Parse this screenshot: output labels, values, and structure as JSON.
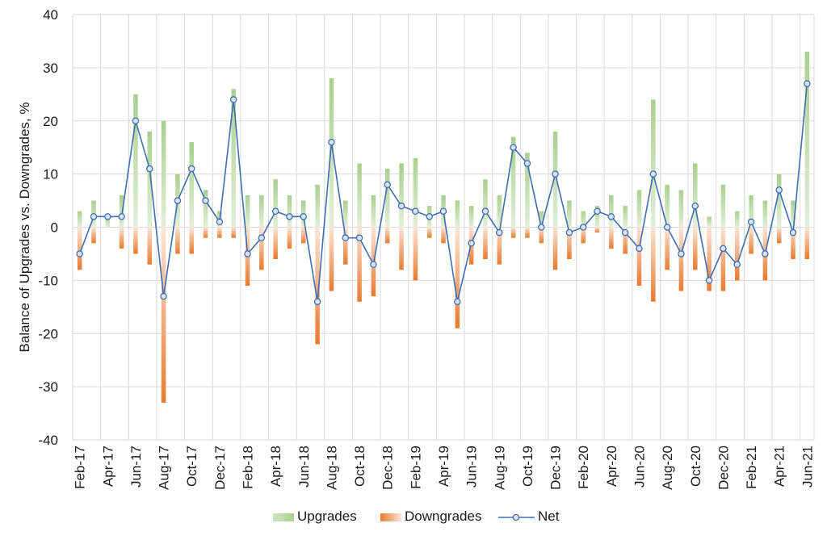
{
  "chart_data": {
    "type": "bar",
    "ylabel": "Balance of Upgrades vs. Downgrades, %",
    "ylim": [
      -40,
      40
    ],
    "yticks": [
      "-40",
      "-30",
      "-20",
      "-10",
      "0",
      "10",
      "20",
      "30",
      "40"
    ],
    "grid": "vertical and horizontal",
    "legend_position": "bottom",
    "x_tick_labels": [
      "Feb-17",
      "Apr-17",
      "Jun-17",
      "Aug-17",
      "Oct-17",
      "Dec-17",
      "Feb-18",
      "Apr-18",
      "Jun-18",
      "Aug-18",
      "Oct-18",
      "Dec-18",
      "Feb-19",
      "Apr-19",
      "Jun-19",
      "Aug-19",
      "Oct-19",
      "Dec-19",
      "Feb-20",
      "Apr-20",
      "Jun-20",
      "Aug-20",
      "Oct-20",
      "Dec-20",
      "Feb-21",
      "Apr-21",
      "Jun-21"
    ],
    "categories": [
      "Feb-17",
      "Mar-17",
      "Apr-17",
      "May-17",
      "Jun-17",
      "Jul-17",
      "Aug-17",
      "Sep-17",
      "Oct-17",
      "Nov-17",
      "Dec-17",
      "Jan-18",
      "Feb-18",
      "Mar-18",
      "Apr-18",
      "May-18",
      "Jun-18",
      "Jul-18",
      "Aug-18",
      "Sep-18",
      "Oct-18",
      "Nov-18",
      "Dec-18",
      "Jan-19",
      "Feb-19",
      "Mar-19",
      "Apr-19",
      "May-19",
      "Jun-19",
      "Jul-19",
      "Aug-19",
      "Sep-19",
      "Oct-19",
      "Nov-19",
      "Dec-19",
      "Jan-20",
      "Feb-20",
      "Mar-20",
      "Apr-20",
      "May-20",
      "Jun-20",
      "Jul-20",
      "Aug-20",
      "Sep-20",
      "Oct-20",
      "Nov-20",
      "Dec-20",
      "Jan-21",
      "Feb-21",
      "Mar-21",
      "Apr-21",
      "May-21",
      "Jun-21"
    ],
    "series": [
      {
        "name": "Upgrades",
        "kind": "bar",
        "color": "#a9d08e",
        "values": [
          3,
          5,
          2,
          6,
          25,
          18,
          20,
          10,
          16,
          7,
          3,
          26,
          6,
          6,
          9,
          6,
          5,
          8,
          28,
          5,
          12,
          6,
          11,
          12,
          13,
          4,
          6,
          5,
          4,
          9,
          6,
          17,
          14,
          3,
          18,
          5,
          3,
          4,
          6,
          4,
          7,
          24,
          8,
          7,
          12,
          2,
          8,
          3,
          6,
          5,
          10,
          5,
          33
        ]
      },
      {
        "name": "Downgrades",
        "kind": "bar",
        "color": "#ed7d31",
        "values": [
          -8,
          -3,
          0,
          -4,
          -5,
          -7,
          -33,
          -5,
          -5,
          -2,
          -2,
          -2,
          -11,
          -8,
          -6,
          -4,
          -3,
          -22,
          -12,
          -7,
          -14,
          -13,
          -3,
          -8,
          -10,
          -2,
          -3,
          -19,
          -7,
          -6,
          -7,
          -2,
          -2,
          -3,
          -8,
          -6,
          -3,
          -1,
          -4,
          -5,
          -11,
          -14,
          -8,
          -12,
          -8,
          -12,
          -12,
          -10,
          -5,
          -10,
          -3,
          -6,
          -6
        ]
      },
      {
        "name": "Net",
        "kind": "line",
        "color": "#4472c4",
        "values": [
          -5,
          2,
          2,
          2,
          20,
          11,
          -13,
          5,
          11,
          5,
          1,
          24,
          -5,
          -2,
          3,
          2,
          2,
          -14,
          16,
          -2,
          -2,
          -7,
          8,
          4,
          3,
          2,
          3,
          -14,
          -3,
          3,
          -1,
          15,
          12,
          0,
          10,
          -1,
          0,
          3,
          2,
          -1,
          -4,
          10,
          0,
          -5,
          4,
          -10,
          -4,
          -7,
          1,
          -5,
          7,
          -1,
          27
        ]
      }
    ]
  }
}
